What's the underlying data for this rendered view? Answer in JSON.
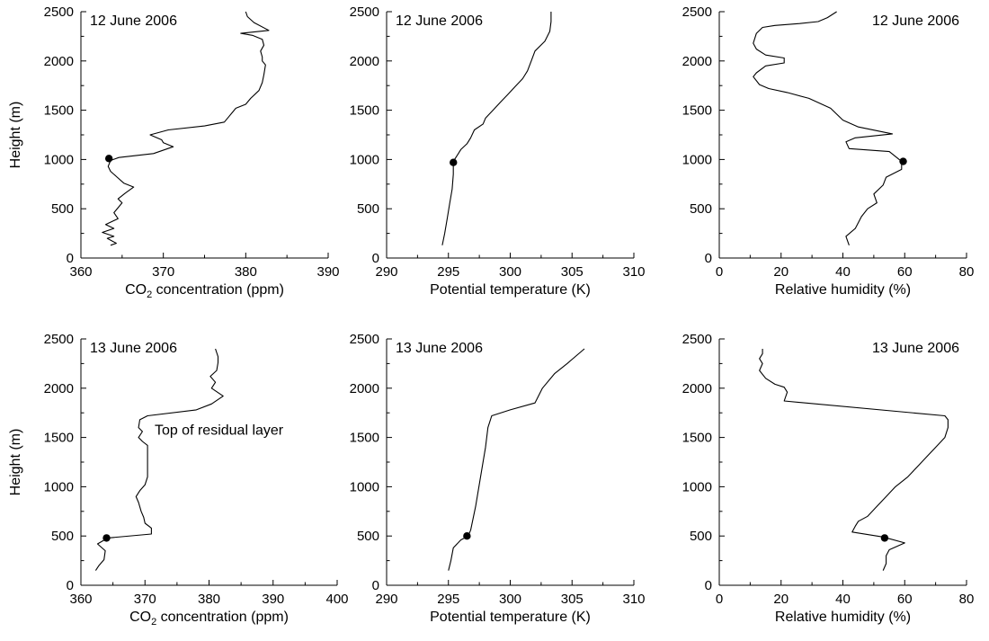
{
  "chart_data": [
    {
      "type": "line",
      "panel": "top-left",
      "annotation_date": "12 June 2006",
      "date_position": "top-left",
      "xlabel": "CO2 concentration (ppm)",
      "ylabel": "Height (m)",
      "xlim": [
        360,
        390
      ],
      "ylim": [
        0,
        2500
      ],
      "xticks": [
        360,
        370,
        380,
        390
      ],
      "yticks": [
        0,
        500,
        1000,
        1500,
        2000,
        2500
      ],
      "grid": false,
      "series": [
        {
          "points": [
            [
              363.6,
              130
            ],
            [
              364.3,
              150
            ],
            [
              363.2,
              200
            ],
            [
              364.0,
              220
            ],
            [
              362.6,
              260
            ],
            [
              364.0,
              300
            ],
            [
              363.0,
              340
            ],
            [
              364.5,
              400
            ],
            [
              364.0,
              460
            ],
            [
              365.0,
              560
            ],
            [
              364.5,
              600
            ],
            [
              365.4,
              660
            ],
            [
              366.4,
              720
            ],
            [
              365.2,
              760
            ],
            [
              364.4,
              820
            ],
            [
              363.6,
              880
            ],
            [
              363.3,
              930
            ],
            [
              363.6,
              990
            ],
            [
              364.6,
              1020
            ],
            [
              368.8,
              1060
            ],
            [
              371.2,
              1130
            ],
            [
              370.0,
              1170
            ],
            [
              369.8,
              1200
            ],
            [
              368.4,
              1250
            ],
            [
              370.6,
              1300
            ],
            [
              375.0,
              1340
            ],
            [
              377.4,
              1380
            ],
            [
              378.0,
              1440
            ],
            [
              378.8,
              1520
            ],
            [
              380.0,
              1560
            ],
            [
              380.6,
              1620
            ],
            [
              381.6,
              1700
            ],
            [
              382.0,
              1780
            ],
            [
              382.2,
              1860
            ],
            [
              382.4,
              1960
            ],
            [
              382.0,
              2000
            ],
            [
              382.0,
              2040
            ],
            [
              381.8,
              2100
            ],
            [
              382.2,
              2160
            ],
            [
              382.0,
              2220
            ],
            [
              380.8,
              2260
            ],
            [
              379.4,
              2280
            ],
            [
              382.8,
              2310
            ],
            [
              381.0,
              2390
            ],
            [
              380.2,
              2450
            ],
            [
              380.0,
              2500
            ]
          ]
        }
      ],
      "highlight_point": [
        363.4,
        1010
      ]
    },
    {
      "type": "line",
      "panel": "top-middle",
      "annotation_date": "12 June 2006",
      "date_position": "top-left",
      "xlabel": "Potential temperature (K)",
      "ylabel": "",
      "xlim": [
        290,
        310
      ],
      "ylim": [
        0,
        2500
      ],
      "xticks": [
        290,
        295,
        300,
        305,
        310
      ],
      "yticks": [
        0,
        500,
        1000,
        1500,
        2000,
        2500
      ],
      "grid": false,
      "series": [
        {
          "points": [
            [
              294.5,
              130
            ],
            [
              294.7,
              250
            ],
            [
              294.9,
              400
            ],
            [
              295.1,
              550
            ],
            [
              295.3,
              700
            ],
            [
              295.4,
              850
            ],
            [
              295.4,
              980
            ],
            [
              295.8,
              1060
            ],
            [
              296.0,
              1100
            ],
            [
              296.5,
              1160
            ],
            [
              296.8,
              1220
            ],
            [
              297.1,
              1300
            ],
            [
              297.8,
              1360
            ],
            [
              298.0,
              1420
            ],
            [
              298.6,
              1500
            ],
            [
              299.2,
              1580
            ],
            [
              299.8,
              1660
            ],
            [
              300.4,
              1740
            ],
            [
              301.0,
              1820
            ],
            [
              301.4,
              1900
            ],
            [
              301.7,
              2000
            ],
            [
              302.0,
              2100
            ],
            [
              302.8,
              2200
            ],
            [
              303.2,
              2300
            ],
            [
              303.3,
              2400
            ],
            [
              303.3,
              2500
            ]
          ]
        }
      ],
      "highlight_point": [
        295.4,
        970
      ]
    },
    {
      "type": "line",
      "panel": "top-right",
      "annotation_date": "12 June 2006",
      "date_position": "top-right",
      "xlabel": "Relative humidity (%)",
      "ylabel": "",
      "xlim": [
        0,
        80
      ],
      "ylim": [
        0,
        2500
      ],
      "xticks": [
        0,
        20,
        40,
        60,
        80
      ],
      "yticks": [
        0,
        500,
        1000,
        1500,
        2000,
        2500
      ],
      "grid": false,
      "series": [
        {
          "points": [
            [
              42,
              130
            ],
            [
              41,
              220
            ],
            [
              44,
              300
            ],
            [
              46,
              420
            ],
            [
              48,
              500
            ],
            [
              51,
              560
            ],
            [
              50,
              650
            ],
            [
              53,
              740
            ],
            [
              54,
              820
            ],
            [
              59,
              900
            ],
            [
              59,
              980
            ],
            [
              55,
              1080
            ],
            [
              42,
              1110
            ],
            [
              41,
              1180
            ],
            [
              44,
              1220
            ],
            [
              56,
              1260
            ],
            [
              45,
              1330
            ],
            [
              40,
              1400
            ],
            [
              36,
              1520
            ],
            [
              29,
              1620
            ],
            [
              22,
              1680
            ],
            [
              16,
              1720
            ],
            [
              13,
              1760
            ],
            [
              11,
              1840
            ],
            [
              12,
              1880
            ],
            [
              15,
              1950
            ],
            [
              21,
              1980
            ],
            [
              21,
              2030
            ],
            [
              15,
              2060
            ],
            [
              12,
              2120
            ],
            [
              11,
              2180
            ],
            [
              12,
              2280
            ],
            [
              14,
              2340
            ],
            [
              18,
              2360
            ],
            [
              26,
              2380
            ],
            [
              32,
              2400
            ],
            [
              35,
              2440
            ],
            [
              38,
              2500
            ]
          ]
        }
      ],
      "highlight_point": [
        59.5,
        980
      ]
    },
    {
      "type": "line",
      "panel": "bottom-left",
      "annotation_date": "13 June 2006",
      "date_position": "top-left",
      "annotation_text": "Top of residual layer",
      "xlabel": "CO2 concentration (ppm)",
      "ylabel": "Height (m)",
      "xlim": [
        360,
        400
      ],
      "ylim": [
        0,
        2500
      ],
      "xticks": [
        360,
        370,
        380,
        390,
        400
      ],
      "yticks": [
        0,
        500,
        1000,
        1500,
        2000,
        2500
      ],
      "grid": false,
      "series": [
        {
          "points": [
            [
              362.3,
              150
            ],
            [
              362.8,
              200
            ],
            [
              363.6,
              260
            ],
            [
              363.8,
              350
            ],
            [
              362.6,
              420
            ],
            [
              364.2,
              480
            ],
            [
              371.0,
              520
            ],
            [
              371.0,
              580
            ],
            [
              370.0,
              630
            ],
            [
              369.8,
              690
            ],
            [
              369.4,
              750
            ],
            [
              369.0,
              840
            ],
            [
              368.6,
              900
            ],
            [
              369.2,
              960
            ],
            [
              370.0,
              1020
            ],
            [
              370.4,
              1100
            ],
            [
              370.4,
              1200
            ],
            [
              370.4,
              1300
            ],
            [
              370.4,
              1420
            ],
            [
              369.6,
              1460
            ],
            [
              369.0,
              1500
            ],
            [
              369.6,
              1560
            ],
            [
              369.0,
              1600
            ],
            [
              369.2,
              1680
            ],
            [
              370.4,
              1720
            ],
            [
              378.0,
              1780
            ],
            [
              380.4,
              1840
            ],
            [
              382.2,
              1920
            ],
            [
              380.4,
              2000
            ],
            [
              381.0,
              2060
            ],
            [
              380.2,
              2120
            ],
            [
              381.2,
              2180
            ],
            [
              381.4,
              2260
            ],
            [
              381.4,
              2320
            ],
            [
              381.0,
              2400
            ]
          ]
        }
      ],
      "highlight_point": [
        364.0,
        480
      ]
    },
    {
      "type": "line",
      "panel": "bottom-middle",
      "annotation_date": "13 June 2006",
      "date_position": "top-left",
      "xlabel": "Potential temperature (K)",
      "ylabel": "",
      "xlim": [
        290,
        310
      ],
      "ylim": [
        0,
        2500
      ],
      "xticks": [
        290,
        295,
        300,
        305,
        310
      ],
      "yticks": [
        0,
        500,
        1000,
        1500,
        2000,
        2500
      ],
      "grid": false,
      "series": [
        {
          "points": [
            [
              295.0,
              150
            ],
            [
              295.2,
              250
            ],
            [
              295.4,
              380
            ],
            [
              296.0,
              460
            ],
            [
              296.6,
              500
            ],
            [
              296.8,
              560
            ],
            [
              297.2,
              800
            ],
            [
              297.6,
              1100
            ],
            [
              298.0,
              1400
            ],
            [
              298.2,
              1600
            ],
            [
              298.5,
              1720
            ],
            [
              300.0,
              1780
            ],
            [
              302.0,
              1850
            ],
            [
              302.6,
              2000
            ],
            [
              303.6,
              2150
            ],
            [
              304.6,
              2250
            ],
            [
              306.0,
              2400
            ]
          ]
        }
      ],
      "highlight_point": [
        296.5,
        500
      ]
    },
    {
      "type": "line",
      "panel": "bottom-right",
      "annotation_date": "13 June 2006",
      "date_position": "top-right",
      "xlabel": "Relative humidity (%)",
      "ylabel": "",
      "xlim": [
        0,
        80
      ],
      "ylim": [
        0,
        2500
      ],
      "xticks": [
        0,
        20,
        40,
        60,
        80
      ],
      "yticks": [
        0,
        500,
        1000,
        1500,
        2000,
        2500
      ],
      "grid": false,
      "series": [
        {
          "points": [
            [
              53,
              150
            ],
            [
              54,
              220
            ],
            [
              54,
              300
            ],
            [
              55,
              360
            ],
            [
              60,
              430
            ],
            [
              53,
              490
            ],
            [
              43,
              540
            ],
            [
              44,
              600
            ],
            [
              45,
              650
            ],
            [
              48,
              700
            ],
            [
              51,
              800
            ],
            [
              54,
              900
            ],
            [
              57,
              1000
            ],
            [
              61,
              1100
            ],
            [
              64,
              1200
            ],
            [
              67,
              1300
            ],
            [
              70,
              1400
            ],
            [
              73,
              1500
            ],
            [
              74,
              1600
            ],
            [
              74,
              1680
            ],
            [
              73,
              1720
            ],
            [
              21,
              1870
            ],
            [
              22,
              1960
            ],
            [
              21,
              2010
            ],
            [
              18,
              2040
            ],
            [
              15,
              2100
            ],
            [
              13,
              2180
            ],
            [
              14,
              2250
            ],
            [
              13,
              2300
            ],
            [
              14,
              2350
            ],
            [
              14,
              2400
            ]
          ]
        }
      ],
      "highlight_point": [
        53.5,
        480
      ]
    }
  ]
}
